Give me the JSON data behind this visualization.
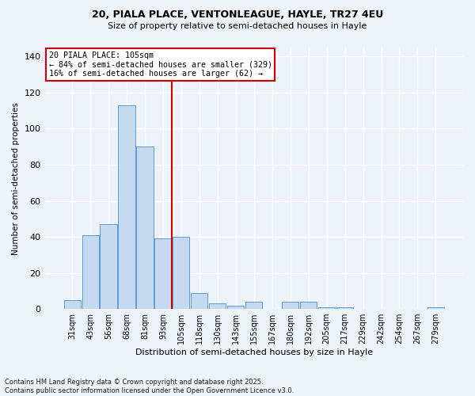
{
  "title1": "20, PIALA PLACE, VENTONLEAGUE, HAYLE, TR27 4EU",
  "title2": "Size of property relative to semi-detached houses in Hayle",
  "xlabel": "Distribution of semi-detached houses by size in Hayle",
  "ylabel": "Number of semi-detached properties",
  "categories": [
    "31sqm",
    "43sqm",
    "56sqm",
    "68sqm",
    "81sqm",
    "93sqm",
    "105sqm",
    "118sqm",
    "130sqm",
    "143sqm",
    "155sqm",
    "167sqm",
    "180sqm",
    "192sqm",
    "205sqm",
    "217sqm",
    "229sqm",
    "242sqm",
    "254sqm",
    "267sqm",
    "279sqm"
  ],
  "values": [
    5,
    41,
    47,
    113,
    90,
    39,
    40,
    9,
    3,
    2,
    4,
    0,
    4,
    4,
    1,
    1,
    0,
    0,
    0,
    0,
    1
  ],
  "bar_color": "#c5d9f1",
  "bar_edge_color": "#5b9bd5",
  "property_line_x": 6,
  "annotation_title": "20 PIALA PLACE: 105sqm",
  "annotation_line1": "← 84% of semi-detached houses are smaller (329)",
  "annotation_line2": "16% of semi-detached houses are larger (62) →",
  "annotation_box_color": "#ffffff",
  "annotation_box_edge": "#cc0000",
  "vline_color": "#cc0000",
  "ylim": [
    0,
    145
  ],
  "yticks": [
    0,
    20,
    40,
    60,
    80,
    100,
    120,
    140
  ],
  "footer1": "Contains HM Land Registry data © Crown copyright and database right 2025.",
  "footer2": "Contains public sector information licensed under the Open Government Licence v3.0.",
  "bg_color": "#eef2f9",
  "grid_color": "#ffffff"
}
